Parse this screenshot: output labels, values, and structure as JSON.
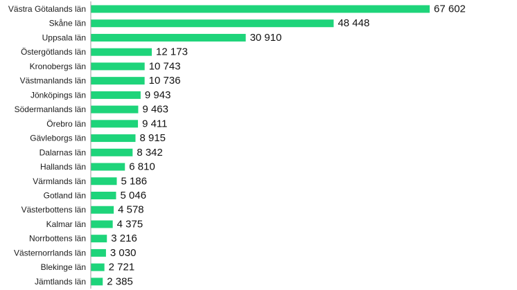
{
  "chart_data": {
    "type": "bar",
    "orientation": "horizontal",
    "categories": [
      "Västra Götalands län",
      "Skåne län",
      "Uppsala län",
      "Östergötlands län",
      "Kronobergs län",
      "Västmanlands län",
      "Jönköpings län",
      "Södermanlands län",
      "Örebro län",
      "Gävleborgs län",
      "Dalarnas län",
      "Hallands län",
      "Värmlands län",
      "Gotland län",
      "Västerbottens län",
      "Kalmar län",
      "Norrbottens län",
      "Västernorrlands län",
      "Blekinge län",
      "Jämtlands län"
    ],
    "values": [
      67602,
      48448,
      30910,
      12173,
      10743,
      10736,
      9943,
      9463,
      9411,
      8915,
      8342,
      6810,
      5186,
      5046,
      4578,
      4375,
      3216,
      3030,
      2721,
      2385
    ],
    "value_labels": [
      "67 602",
      "48 448",
      "30 910",
      "12 173",
      "10 743",
      "10 736",
      "9 943",
      "9 463",
      "9 411",
      "8 915",
      "8 342",
      "6 810",
      "5 186",
      "5 046",
      "4 578",
      "4 375",
      "3 216",
      "3 030",
      "2 721",
      "2 385"
    ],
    "title": "",
    "xlabel": "",
    "ylabel": "",
    "grid": false,
    "legend": "none",
    "bar_color": "#1ed47a",
    "axis_color": "#9a9a9a"
  }
}
